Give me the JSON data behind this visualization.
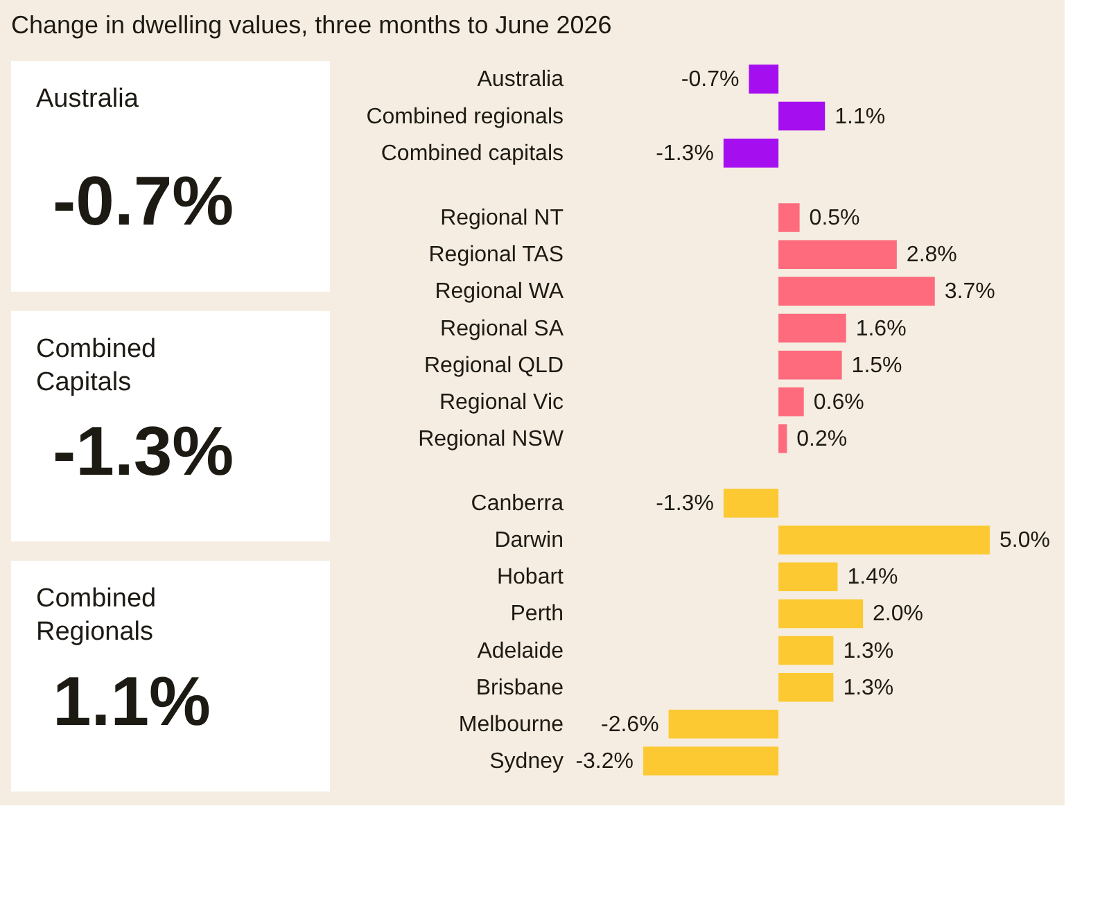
{
  "chart_data": [
    {
      "type": "other",
      "title": "Change in dwelling values, three months to June 2026",
      "annotations": [
        "Australia",
        "-0.7%",
        "Combined Capitals",
        "-1.3%",
        "Combined Regionals",
        "1.1%"
      ]
    },
    {
      "type": "bar",
      "orientation": "horizontal",
      "categories": [
        "Australia",
        "Combined regionals",
        "Combined capitals"
      ],
      "values": [
        -0.7,
        1.1,
        -1.3
      ],
      "value_labels": [
        "-0.7%",
        "1.1%",
        "-1.3%"
      ],
      "color": "#a50ff0"
    },
    {
      "type": "bar",
      "orientation": "horizontal",
      "categories": [
        "Regional NT",
        "Regional TAS",
        "Regional WA",
        "Regional SA",
        "Regional QLD",
        "Regional Vic",
        "Regional NSW"
      ],
      "values": [
        0.5,
        2.8,
        3.7,
        1.6,
        1.5,
        0.6,
        0.2
      ],
      "value_labels": [
        "0.5%",
        "2.8%",
        "3.7%",
        "1.6%",
        "1.5%",
        "0.6%",
        "0.2%"
      ],
      "color": "#fd6b7c"
    },
    {
      "type": "bar",
      "orientation": "horizontal",
      "categories": [
        "Canberra",
        "Darwin",
        "Hobart",
        "Perth",
        "Adelaide",
        "Brisbane",
        "Melbourne",
        "Sydney"
      ],
      "values": [
        -1.3,
        5.0,
        1.4,
        2.0,
        1.3,
        1.3,
        -2.6,
        -3.2
      ],
      "value_labels": [
        "-1.3%",
        "5.0%",
        "1.4%",
        "2.0%",
        "1.3%",
        "1.3%",
        "-2.6%",
        "-3.2%"
      ],
      "color": "#fdc932"
    }
  ]
}
